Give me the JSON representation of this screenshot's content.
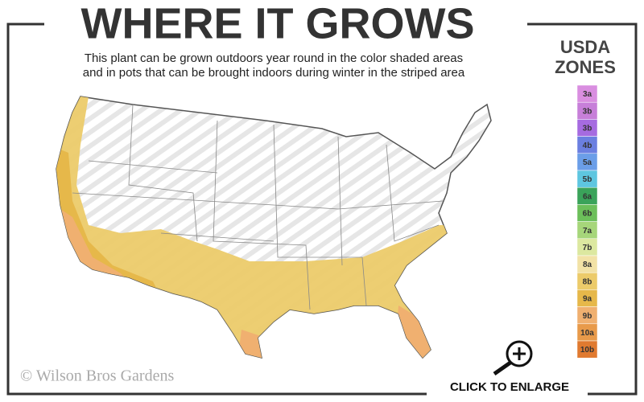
{
  "title": "WHERE IT GROWS",
  "subtitle": [
    "This plant can be grown outdoors year round in the color shaded areas",
    "and in pots that can be brought indoors during winter in the striped area"
  ],
  "legend": {
    "title": [
      "USDA",
      "ZONES"
    ],
    "zones": [
      {
        "label": "3a",
        "color": "#d98ee0"
      },
      {
        "label": "3b",
        "color": "#c77fd9"
      },
      {
        "label": "3b",
        "color": "#a66be0"
      },
      {
        "label": "4b",
        "color": "#6b7fe0"
      },
      {
        "label": "5a",
        "color": "#6b9ee8"
      },
      {
        "label": "5b",
        "color": "#5ec6e0"
      },
      {
        "label": "6a",
        "color": "#3aa35a"
      },
      {
        "label": "6b",
        "color": "#6cbf5a"
      },
      {
        "label": "7a",
        "color": "#a6d67a"
      },
      {
        "label": "7b",
        "color": "#dce8a0"
      },
      {
        "label": "8a",
        "color": "#f2e2a6"
      },
      {
        "label": "8b",
        "color": "#eccb6a"
      },
      {
        "label": "9a",
        "color": "#e6b84a"
      },
      {
        "label": "9b",
        "color": "#f0b070"
      },
      {
        "label": "10a",
        "color": "#e89a4a"
      },
      {
        "label": "10b",
        "color": "#e07a30"
      }
    ]
  },
  "copyright": "© Wilson Bros Gardens",
  "button": "CLICK TO ENLARGE"
}
